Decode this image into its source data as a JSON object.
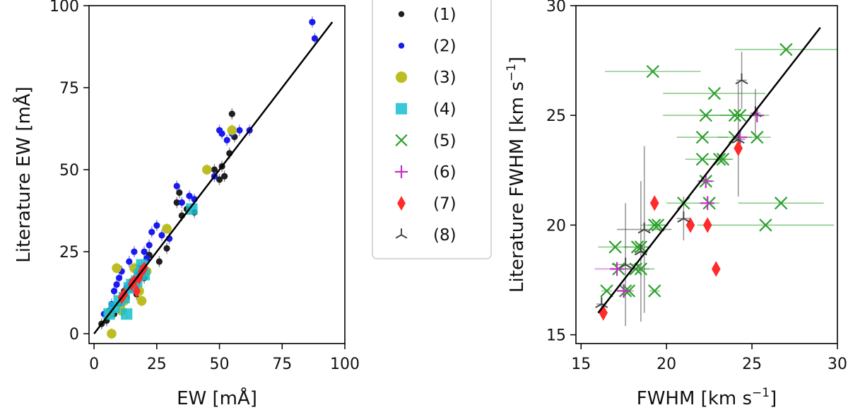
{
  "chart_data": [
    {
      "type": "scatter",
      "xlabel": "EW [mÅ]",
      "ylabel": "Literature EW [mÅ]",
      "xlim": [
        -2,
        100
      ],
      "ylim": [
        -3,
        100
      ],
      "xticks": [
        0,
        25,
        50,
        75,
        100
      ],
      "yticks": [
        0,
        25,
        50,
        75,
        100
      ],
      "one_to_one_line": [
        [
          0,
          0
        ],
        [
          95,
          95
        ]
      ],
      "series": [
        {
          "name": "(1)",
          "color": "#1f1f1f",
          "marker": "dot",
          "points": [
            [
              3,
              3
            ],
            [
              5,
              4
            ],
            [
              8,
              6
            ],
            [
              10,
              9
            ],
            [
              12,
              13
            ],
            [
              13,
              11
            ],
            [
              15,
              16
            ],
            [
              17,
              12
            ],
            [
              18,
              20
            ],
            [
              20,
              17
            ],
            [
              22,
              24
            ],
            [
              26,
              22
            ],
            [
              29,
              26
            ],
            [
              33,
              40
            ],
            [
              34,
              43
            ],
            [
              35,
              36
            ],
            [
              37,
              38
            ],
            [
              40,
              37
            ],
            [
              48,
              50
            ],
            [
              50,
              47
            ],
            [
              51,
              51
            ],
            [
              52,
              48
            ],
            [
              54,
              55
            ],
            [
              55,
              62
            ],
            [
              55,
              67
            ],
            [
              56,
              60
            ]
          ]
        },
        {
          "name": "(2)",
          "color": "#1a1aee",
          "marker": "dot",
          "points": [
            [
              4,
              6
            ],
            [
              6,
              7
            ],
            [
              7,
              9
            ],
            [
              8,
              13
            ],
            [
              9,
              15
            ],
            [
              10,
              17
            ],
            [
              11,
              19
            ],
            [
              12,
              12
            ],
            [
              13,
              14
            ],
            [
              14,
              22
            ],
            [
              15,
              15
            ],
            [
              16,
              25
            ],
            [
              17,
              19
            ],
            [
              18,
              17
            ],
            [
              19,
              20
            ],
            [
              20,
              25
            ],
            [
              21,
              23
            ],
            [
              22,
              27
            ],
            [
              23,
              31
            ],
            [
              25,
              33
            ],
            [
              27,
              30
            ],
            [
              30,
              29
            ],
            [
              33,
              45
            ],
            [
              35,
              40
            ],
            [
              38,
              42
            ],
            [
              40,
              41
            ],
            [
              48,
              48
            ],
            [
              50,
              62
            ],
            [
              51,
              61
            ],
            [
              53,
              59
            ],
            [
              55,
              61
            ],
            [
              58,
              62
            ],
            [
              62,
              62
            ],
            [
              87,
              95
            ],
            [
              88,
              90
            ]
          ]
        },
        {
          "name": "(3)",
          "color": "#bcbd22",
          "marker": "circle",
          "points": [
            [
              6,
              6
            ],
            [
              7,
              0
            ],
            [
              9,
              20
            ],
            [
              11,
              7
            ],
            [
              12,
              10
            ],
            [
              16,
              20
            ],
            [
              18,
              13
            ],
            [
              19,
              10
            ],
            [
              21,
              19
            ],
            [
              29,
              32
            ],
            [
              45,
              50
            ],
            [
              55,
              62
            ]
          ]
        },
        {
          "name": "(4)",
          "color": "#17becf",
          "marker": "square",
          "points": [
            [
              6,
              6
            ],
            [
              8,
              8
            ],
            [
              10,
              10
            ],
            [
              12,
              11
            ],
            [
              13,
              6
            ],
            [
              14,
              14
            ],
            [
              15,
              15
            ],
            [
              16,
              14
            ],
            [
              17,
              16
            ],
            [
              18,
              18
            ],
            [
              19,
              21
            ],
            [
              20,
              18
            ],
            [
              39,
              38
            ]
          ]
        },
        {
          "name": "(7)",
          "color": "#ff2a2a",
          "marker": "diamond",
          "points": [
            [
              11,
              11
            ],
            [
              12,
              12
            ],
            [
              15,
              15
            ],
            [
              16,
              16
            ],
            [
              17,
              13
            ],
            [
              18,
              17
            ],
            [
              19,
              19
            ],
            [
              20,
              20
            ]
          ]
        }
      ],
      "legend": [
        "(1)",
        "(2)",
        "(3)",
        "(4)",
        "(5)",
        "(6)",
        "(7)",
        "(8)"
      ]
    },
    {
      "type": "scatter",
      "xlabel": "FWHM [km s",
      "ylabel": "Literature FWHM [km s",
      "unit_superscript": "−1",
      "unit_close": "]",
      "xlim": [
        14.7,
        30
      ],
      "ylim": [
        14.6,
        30
      ],
      "xticks": [
        15,
        20,
        25,
        30
      ],
      "yticks": [
        15,
        20,
        25,
        30
      ],
      "one_to_one_line": [
        [
          16,
          16
        ],
        [
          29,
          29
        ]
      ],
      "series": [
        {
          "name": "(5)",
          "color": "#2ca02c",
          "marker": "x",
          "points": [
            {
              "x": 27.0,
              "y": 28.0,
              "ex": 3.0
            },
            {
              "x": 19.2,
              "y": 27.0,
              "ex": 2.8
            },
            {
              "x": 22.8,
              "y": 26.0,
              "ex": 3.0
            },
            {
              "x": 22.3,
              "y": 25.0,
              "ex": 2.5
            },
            {
              "x": 24.0,
              "y": 25.0,
              "ex": 2.0
            },
            {
              "x": 24.3,
              "y": 25.0,
              "ex": 1.2
            },
            {
              "x": 22.1,
              "y": 24.0,
              "ex": 1.5
            },
            {
              "x": 24.0,
              "y": 24.0,
              "ex": 1.0
            },
            {
              "x": 25.3,
              "y": 24.0,
              "ex": 0.8
            },
            {
              "x": 22.1,
              "y": 23.0,
              "ex": 1.0
            },
            {
              "x": 23.1,
              "y": 23.0,
              "ex": 0.8
            },
            {
              "x": 23.3,
              "y": 23.0,
              "ex": 0.5
            },
            {
              "x": 22.3,
              "y": 22.0,
              "ex": 0.5
            },
            {
              "x": 21.0,
              "y": 21.0,
              "ex": 1.0
            },
            {
              "x": 22.5,
              "y": 21.0,
              "ex": 0.6
            },
            {
              "x": 26.7,
              "y": 21.0,
              "ex": 2.5
            },
            {
              "x": 19.3,
              "y": 20.0,
              "ex": 0.8
            },
            {
              "x": 19.5,
              "y": 20.0,
              "ex": 0.6
            },
            {
              "x": 25.8,
              "y": 20.0,
              "ex": 4.0
            },
            {
              "x": 17.0,
              "y": 19.0,
              "ex": 1.0
            },
            {
              "x": 18.3,
              "y": 19.0,
              "ex": 0.8
            },
            {
              "x": 18.5,
              "y": 19.0,
              "ex": 0.5
            },
            {
              "x": 17.2,
              "y": 18.0,
              "ex": 0.5
            },
            {
              "x": 18.2,
              "y": 18.0,
              "ex": 0.8
            },
            {
              "x": 18.5,
              "y": 18.0,
              "ex": 0.8
            },
            {
              "x": 16.5,
              "y": 17.0,
              "ex": 0.3
            },
            {
              "x": 17.6,
              "y": 17.0,
              "ex": 0.3
            },
            {
              "x": 17.8,
              "y": 17.0,
              "ex": 0.3
            },
            {
              "x": 19.3,
              "y": 17.0,
              "ex": 0.3
            }
          ]
        },
        {
          "name": "(6)",
          "color": "#c430c4",
          "marker": "plus",
          "points": [
            {
              "x": 25.3,
              "y": 25.0,
              "ex": 0.3
            },
            {
              "x": 24.3,
              "y": 24.0,
              "ex": 0.3
            },
            {
              "x": 22.3,
              "y": 22.0,
              "ex": 0.4
            },
            {
              "x": 22.4,
              "y": 21.0,
              "ex": 0.4
            },
            {
              "x": 17.1,
              "y": 18.0,
              "ex": 1.3
            },
            {
              "x": 17.5,
              "y": 17.0,
              "ex": 0.4
            }
          ]
        },
        {
          "name": "(7)",
          "color": "#ff2a2a",
          "marker": "diamond",
          "points": [
            {
              "x": 24.2,
              "y": 23.5,
              "ex": 0
            },
            {
              "x": 19.3,
              "y": 21.0,
              "ex": 0
            },
            {
              "x": 21.4,
              "y": 20.0,
              "ex": 0
            },
            {
              "x": 22.4,
              "y": 20.0,
              "ex": 0
            },
            {
              "x": 22.9,
              "y": 18.0,
              "ex": 0
            },
            {
              "x": 16.3,
              "y": 16.0,
              "ex": 0
            }
          ]
        },
        {
          "name": "(8)",
          "color": "#444444",
          "marker": "tri",
          "points": [
            {
              "x": 24.4,
              "y": 26.6,
              "ex": 0.3,
              "ey": 1.3
            },
            {
              "x": 25.2,
              "y": 25.1,
              "ex": 0.3,
              "ey": 1.1
            },
            {
              "x": 24.2,
              "y": 23.9,
              "ex": 0.4,
              "ey": 2.6
            },
            {
              "x": 21.0,
              "y": 20.3,
              "ex": 0.4,
              "ey": 1.0
            },
            {
              "x": 18.7,
              "y": 19.8,
              "ex": 1.6,
              "ey": 3.8
            },
            {
              "x": 18.5,
              "y": 18.8,
              "ex": 0.4,
              "ey": 3.2
            },
            {
              "x": 17.6,
              "y": 18.2,
              "ex": 0.8,
              "ey": 2.8
            },
            {
              "x": 16.2,
              "y": 16.4,
              "ex": 0.3,
              "ey": 0.3
            }
          ]
        }
      ]
    }
  ]
}
